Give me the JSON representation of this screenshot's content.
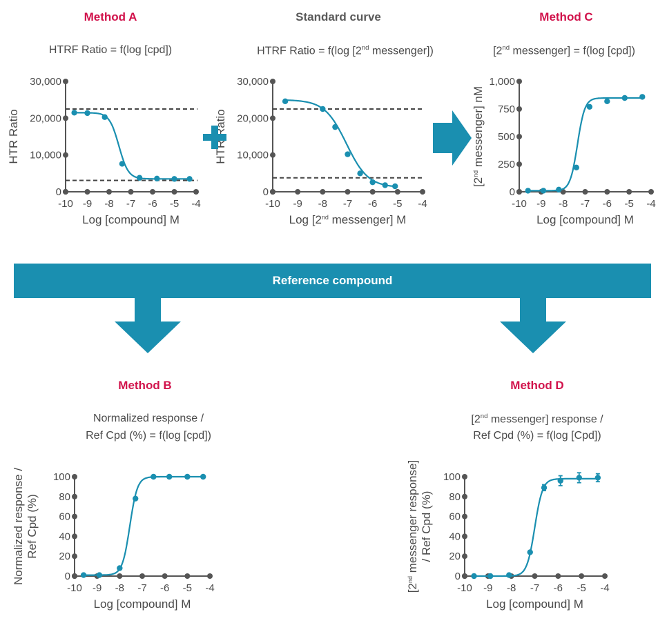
{
  "header": {
    "method_a": "Method A",
    "standard_curve": "Standard curve",
    "method_c": "Method C",
    "method_b": "Method B",
    "method_d": "Method D",
    "reference_band": "Reference compound"
  },
  "subtitles": {
    "a": "HTRF Ratio = f(log [cpd])",
    "std_pre": "HTRF Ratio = f(log [2",
    "std_sup": "nd",
    "std_post": " messenger])",
    "c_pre": "[2",
    "c_sup": "nd",
    "c_post": " messenger] = f(log [cpd])",
    "b_line1": "Normalized response  /",
    "b_line2": "Ref Cpd  (%)  = f(log [cpd])",
    "d_line1_pre": "[2",
    "d_line1_sup": "nd",
    "d_line1_post": " messenger] response /",
    "d_line2": "Ref Cpd (%) = f(log [Cpd])"
  },
  "colors": {
    "curve": "#1a8fb0",
    "accent_red": "#d1124b",
    "axis": "#555555",
    "arrow": "#1a8fb0"
  },
  "icons": [
    "plus-icon",
    "right-arrow-icon",
    "down-arrow-icon"
  ],
  "chart_data": [
    {
      "id": "method-a",
      "type": "line",
      "xlabel": "Log [compound] M",
      "ylabel": "HTR Ratio",
      "xlim": [
        -10,
        -4
      ],
      "ylim": [
        0,
        30000
      ],
      "xticks": [
        -10,
        -9,
        -8,
        -7,
        -6,
        -5,
        -4
      ],
      "yticks": [
        0,
        10000,
        20000,
        30000
      ],
      "yticklabels": [
        "0",
        "10,000",
        "20,000",
        "30,000"
      ],
      "points": {
        "x": [
          -9.6,
          -9.0,
          -8.2,
          -7.4,
          -6.6,
          -5.8,
          -5.0,
          -4.3
        ],
        "y": [
          21500,
          21400,
          20300,
          7600,
          3800,
          3600,
          3500,
          3500
        ]
      },
      "sigmoid": {
        "bottom": 3500,
        "top": 21500,
        "logec50": -7.55,
        "hill": -2.0
      },
      "reference_lines": [
        22500,
        3100
      ]
    },
    {
      "id": "standard-curve",
      "type": "line",
      "xlabel_pre": "Log [2",
      "xlabel_sup": "nd",
      "xlabel_post": " messenger] M",
      "ylabel": "HTR Ratio",
      "xlim": [
        -10,
        -4
      ],
      "ylim": [
        0,
        30000
      ],
      "xticks": [
        -10,
        -9,
        -8,
        -7,
        -6,
        -5,
        -4
      ],
      "yticks": [
        0,
        10000,
        20000,
        30000
      ],
      "yticklabels": [
        "0",
        "10,000",
        "20,000",
        "30,000"
      ],
      "points": {
        "x": [
          -9.5,
          -8.0,
          -7.5,
          -7.0,
          -6.5,
          -6.0,
          -5.5,
          -5.1
        ],
        "y": [
          24600,
          22500,
          17600,
          10200,
          5000,
          2600,
          1800,
          1500
        ]
      },
      "sigmoid": {
        "bottom": 1200,
        "top": 25000,
        "logec50": -7.05,
        "hill": -1.0
      },
      "reference_lines": [
        22500,
        3800
      ]
    },
    {
      "id": "method-c",
      "type": "line",
      "xlabel": "Log [compound] M",
      "ylabel_pre": "[2",
      "ylabel_sup": "nd",
      "ylabel_post": " messenger] nM",
      "xlim": [
        -10,
        -4
      ],
      "ylim": [
        0,
        1000
      ],
      "xticks": [
        -10,
        -9,
        -8,
        -7,
        -6,
        -5,
        -4
      ],
      "yticks": [
        0,
        250,
        500,
        750,
        1000
      ],
      "yticklabels": [
        "0",
        "250",
        "500",
        "750",
        "1,000"
      ],
      "points": {
        "x": [
          -9.6,
          -8.9,
          -8.2,
          -7.4,
          -6.8,
          -6.0,
          -5.2,
          -4.4
        ],
        "y": [
          10,
          10,
          20,
          220,
          770,
          820,
          850,
          860
        ]
      },
      "sigmoid": {
        "bottom": 10,
        "top": 850,
        "logec50": -7.35,
        "hill": 2.6
      },
      "reference_lines": []
    },
    {
      "id": "method-b",
      "type": "line",
      "xlabel": "Log [compound] M",
      "ylabel_line1": "Normalized response /",
      "ylabel_line2": "Ref Cpd  (%)",
      "xlim": [
        -10,
        -4
      ],
      "ylim": [
        0,
        100
      ],
      "xticks": [
        -10,
        -9,
        -8,
        -7,
        -6,
        -5,
        -4
      ],
      "yticks": [
        0,
        20,
        40,
        60,
        80,
        100
      ],
      "yticklabels": [
        "0",
        "20",
        "40",
        "60",
        "80",
        "100"
      ],
      "points": {
        "x": [
          -9.6,
          -8.9,
          -8.0,
          -7.3,
          -6.5,
          -5.8,
          -5.0,
          -4.3
        ],
        "y": [
          1,
          1,
          8,
          78,
          100,
          100,
          100,
          100
        ]
      },
      "sigmoid": {
        "bottom": 1,
        "top": 100,
        "logec50": -7.55,
        "hill": 2.6
      },
      "reference_lines": []
    },
    {
      "id": "method-d",
      "type": "line",
      "xlabel": "Log [compound] M",
      "ylabel_line1_pre": "[2",
      "ylabel_line1_sup": "nd",
      "ylabel_line1_post": " messenger response]",
      "ylabel_line2": "/ Ref Cpd (%)",
      "xlim": [
        -10,
        -4
      ],
      "ylim": [
        0,
        100
      ],
      "xticks": [
        -10,
        -9,
        -8,
        -7,
        -6,
        -5,
        -4
      ],
      "yticks": [
        0,
        20,
        40,
        60,
        80,
        100
      ],
      "yticklabels": [
        "0",
        "20",
        "40",
        "60",
        "80",
        "100"
      ],
      "points": {
        "x": [
          -9.6,
          -8.9,
          -8.1,
          -7.2,
          -6.6,
          -5.9,
          -5.1,
          -4.3
        ],
        "y": [
          0,
          0,
          1,
          24,
          89,
          96,
          99,
          99
        ]
      },
      "error": [
        0,
        0,
        0,
        0,
        3,
        5,
        5,
        4
      ],
      "sigmoid": {
        "bottom": 0,
        "top": 98,
        "logec50": -7.0,
        "hill": 2.6
      },
      "reference_lines": []
    }
  ]
}
